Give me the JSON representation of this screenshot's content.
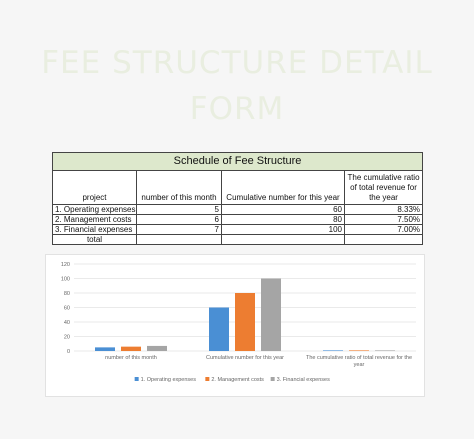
{
  "watermark": {
    "line1": "FEE STRUCTURE DETAIL",
    "line2": "FORM"
  },
  "table": {
    "title": "Schedule of Fee Structure",
    "headers": [
      "project",
      "number of this month",
      "Cumulative number for this year",
      "The cumulative ratio of total revenue for the year"
    ],
    "rows": [
      [
        "1. Operating expenses",
        "5",
        "60",
        "8.33%"
      ],
      [
        "2. Management costs",
        "6",
        "80",
        "7.50%"
      ],
      [
        "3. Financial expenses",
        "7",
        "100",
        "7.00%"
      ],
      [
        "total",
        "",
        "",
        ""
      ]
    ]
  },
  "chart_data": {
    "type": "bar",
    "categories": [
      "number of this month",
      "Cumulative number for this year",
      "The cumulative ratio of total revenue for the year"
    ],
    "series": [
      {
        "name": "1. Operating expenses",
        "values": [
          5,
          60,
          0.0833
        ],
        "color": "#4a8fd4"
      },
      {
        "name": "2. Management costs",
        "values": [
          6,
          80,
          0.075
        ],
        "color": "#ed7d31"
      },
      {
        "name": "3. Financial expenses",
        "values": [
          7,
          100,
          0.07
        ],
        "color": "#a5a5a5"
      }
    ],
    "ylim": [
      0,
      120
    ],
    "yticks": [
      "0",
      "20",
      "40",
      "60",
      "80",
      "100",
      "120"
    ],
    "grid": true,
    "legend_position": "bottom"
  }
}
